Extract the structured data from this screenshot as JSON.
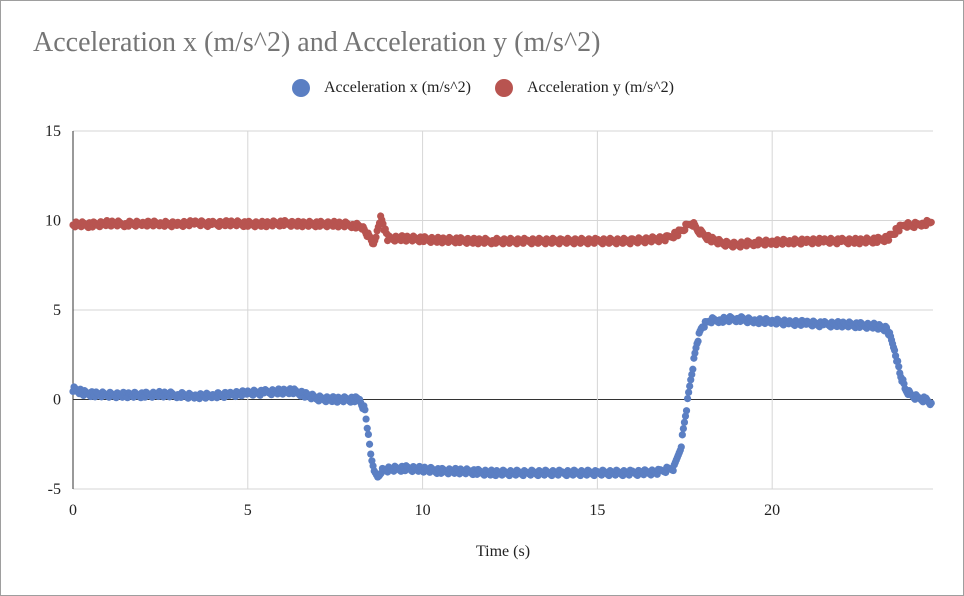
{
  "chart_data": {
    "type": "scatter",
    "title": "Acceleration x (m/s^2) and Acceleration y (m/s^2)",
    "xlabel": "Time (s)",
    "ylabel": "",
    "xlim": [
      0,
      24.6
    ],
    "ylim": [
      -5,
      15
    ],
    "x_ticks": [
      0,
      5,
      10,
      15,
      20
    ],
    "y_ticks": [
      -5,
      0,
      5,
      10,
      15
    ],
    "grid": true,
    "legend_position": "top-center",
    "series": [
      {
        "name": "Acceleration x (m/s^2)",
        "color": "#5b7fc3",
        "points": [
          [
            0.0,
            0.6
          ],
          [
            0.3,
            0.35
          ],
          [
            0.6,
            0.3
          ],
          [
            1.0,
            0.25
          ],
          [
            1.5,
            0.25
          ],
          [
            2.0,
            0.25
          ],
          [
            2.5,
            0.3
          ],
          [
            3.0,
            0.25
          ],
          [
            3.5,
            0.2
          ],
          [
            4.0,
            0.2
          ],
          [
            4.5,
            0.3
          ],
          [
            5.0,
            0.35
          ],
          [
            5.5,
            0.4
          ],
          [
            6.0,
            0.45
          ],
          [
            6.3,
            0.45
          ],
          [
            6.6,
            0.3
          ],
          [
            7.0,
            0.05
          ],
          [
            7.5,
            0.0
          ],
          [
            8.0,
            0.0
          ],
          [
            8.2,
            0.0
          ],
          [
            8.35,
            -0.6
          ],
          [
            8.45,
            -2.0
          ],
          [
            8.55,
            -3.5
          ],
          [
            8.65,
            -4.2
          ],
          [
            8.75,
            -4.4
          ],
          [
            8.85,
            -4.0
          ],
          [
            9.0,
            -3.9
          ],
          [
            9.5,
            -3.85
          ],
          [
            10.0,
            -3.9
          ],
          [
            10.5,
            -4.0
          ],
          [
            11.0,
            -4.0
          ],
          [
            11.5,
            -4.05
          ],
          [
            12.0,
            -4.1
          ],
          [
            13.0,
            -4.1
          ],
          [
            14.0,
            -4.1
          ],
          [
            15.0,
            -4.1
          ],
          [
            16.0,
            -4.1
          ],
          [
            16.8,
            -4.05
          ],
          [
            17.2,
            -3.8
          ],
          [
            17.4,
            -2.5
          ],
          [
            17.55,
            -0.5
          ],
          [
            17.7,
            1.5
          ],
          [
            17.85,
            3.2
          ],
          [
            18.0,
            4.1
          ],
          [
            18.2,
            4.4
          ],
          [
            18.5,
            4.45
          ],
          [
            19.0,
            4.5
          ],
          [
            19.5,
            4.4
          ],
          [
            20.0,
            4.35
          ],
          [
            20.5,
            4.3
          ],
          [
            21.0,
            4.25
          ],
          [
            21.5,
            4.2
          ],
          [
            22.0,
            4.2
          ],
          [
            22.5,
            4.15
          ],
          [
            23.0,
            4.1
          ],
          [
            23.3,
            3.9
          ],
          [
            23.5,
            2.8
          ],
          [
            23.65,
            1.5
          ],
          [
            23.8,
            0.6
          ],
          [
            24.0,
            0.2
          ],
          [
            24.2,
            0.05
          ],
          [
            24.4,
            0.0
          ],
          [
            24.55,
            -0.2
          ]
        ]
      },
      {
        "name": "Acceleration y (m/s^2)",
        "color": "#b85450",
        "points": [
          [
            0.0,
            9.8
          ],
          [
            0.5,
            9.75
          ],
          [
            1.0,
            9.85
          ],
          [
            1.5,
            9.8
          ],
          [
            2.0,
            9.85
          ],
          [
            2.5,
            9.8
          ],
          [
            3.0,
            9.8
          ],
          [
            3.5,
            9.85
          ],
          [
            4.0,
            9.8
          ],
          [
            4.5,
            9.85
          ],
          [
            5.0,
            9.8
          ],
          [
            5.5,
            9.8
          ],
          [
            6.0,
            9.85
          ],
          [
            6.5,
            9.8
          ],
          [
            7.0,
            9.8
          ],
          [
            7.5,
            9.8
          ],
          [
            8.0,
            9.75
          ],
          [
            8.3,
            9.6
          ],
          [
            8.5,
            9.0
          ],
          [
            8.6,
            8.6
          ],
          [
            8.7,
            9.3
          ],
          [
            8.8,
            10.1
          ],
          [
            8.9,
            9.6
          ],
          [
            9.0,
            9.0
          ],
          [
            9.5,
            9.0
          ],
          [
            10.0,
            8.95
          ],
          [
            10.5,
            8.9
          ],
          [
            11.0,
            8.9
          ],
          [
            11.5,
            8.85
          ],
          [
            12.0,
            8.85
          ],
          [
            13.0,
            8.85
          ],
          [
            14.0,
            8.85
          ],
          [
            15.0,
            8.85
          ],
          [
            16.0,
            8.85
          ],
          [
            17.0,
            9.0
          ],
          [
            17.3,
            9.3
          ],
          [
            17.5,
            9.6
          ],
          [
            17.7,
            9.9
          ],
          [
            17.9,
            9.4
          ],
          [
            18.2,
            9.0
          ],
          [
            18.6,
            8.7
          ],
          [
            19.0,
            8.65
          ],
          [
            19.5,
            8.75
          ],
          [
            20.0,
            8.8
          ],
          [
            20.5,
            8.8
          ],
          [
            21.0,
            8.85
          ],
          [
            21.5,
            8.85
          ],
          [
            22.0,
            8.85
          ],
          [
            22.5,
            8.85
          ],
          [
            23.0,
            8.9
          ],
          [
            23.3,
            9.0
          ],
          [
            23.6,
            9.5
          ],
          [
            23.8,
            9.8
          ],
          [
            24.0,
            9.7
          ],
          [
            24.3,
            9.85
          ],
          [
            24.55,
            9.9
          ]
        ]
      }
    ]
  }
}
